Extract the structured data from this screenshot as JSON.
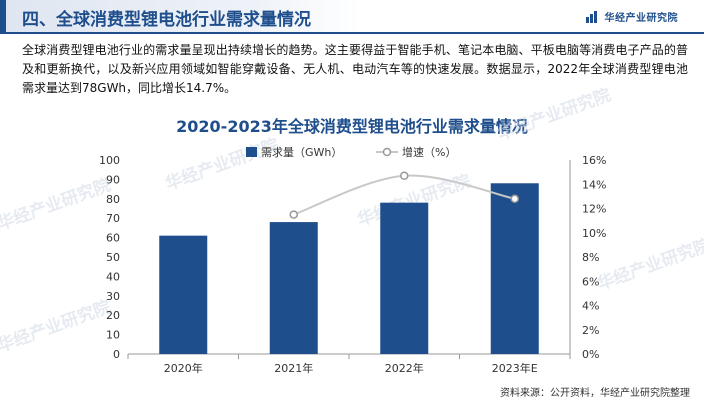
{
  "header": {
    "title": "四、全球消费型锂电池行业需求量情况",
    "logo_text": "华经产业研究院",
    "accent_color": "#1f4e8c"
  },
  "intro": {
    "paragraph": "全球消费型锂电池行业的需求量呈现出持续增长的趋势。这主要得益于智能手机、笔记本电脑、平板电脑等消费电子产品的普及和更新换代，以及新兴应用领域如智能穿戴设备、无人机、电动汽车等的快速发展。数据显示，2022年全球消费型锂电池需求量达到78GWh，同比增长14.7%。"
  },
  "chart_data": {
    "type": "bar",
    "title": "2020-2023年全球消费型锂电池行业需求量情况",
    "categories": [
      "2020年",
      "2021年",
      "2022年",
      "2023年E"
    ],
    "series": [
      {
        "name": "需求量（GWh）",
        "type": "bar",
        "axis": "left",
        "color": "#1f4e8c",
        "values": [
          61,
          68,
          78,
          88
        ]
      },
      {
        "name": "增速（%）",
        "type": "line",
        "axis": "right",
        "color": "#c8c8c8",
        "values": [
          null,
          11.5,
          14.7,
          12.8
        ]
      }
    ],
    "y_left": {
      "min": 0,
      "max": 100,
      "step": 10,
      "ticks": [
        "0",
        "10",
        "20",
        "30",
        "40",
        "50",
        "60",
        "70",
        "80",
        "90",
        "100"
      ]
    },
    "y_right": {
      "min": 0,
      "max": 16,
      "step": 2,
      "ticks": [
        "0%",
        "2%",
        "4%",
        "6%",
        "8%",
        "10%",
        "12%",
        "14%",
        "16%"
      ]
    },
    "legend_position": "top",
    "grid": false
  },
  "watermark": "华经产业研究院",
  "source": "资料来源：公开资料，华经产业研究院整理"
}
